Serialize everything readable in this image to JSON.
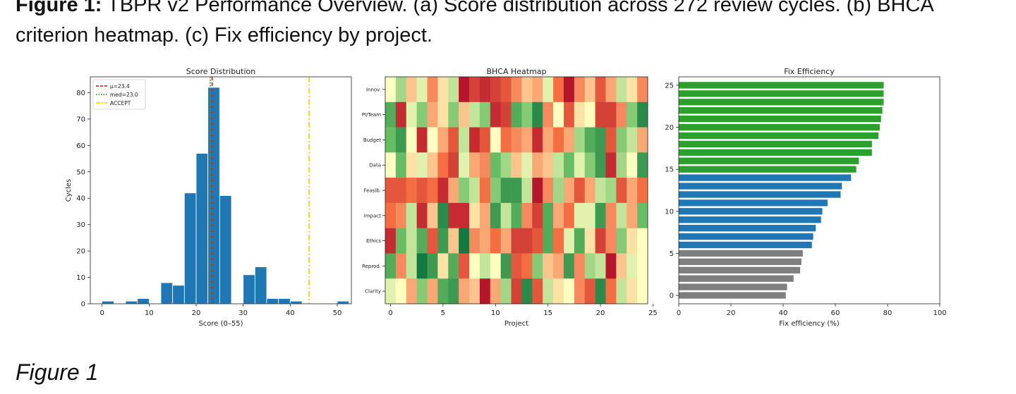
{
  "caption": {
    "label": "Figure 1:",
    "text": "TBPR v2 Performance Overview. (a) Score distribution across 272 review cycles. (b) BHCA criterion heatmap. (c) Fix efficiency by project."
  },
  "figure_label": "Figure 1",
  "chart_data": [
    {
      "type": "bar",
      "title": "Score Distribution",
      "xlabel": "Score (0–55)",
      "ylabel": "Cycles",
      "xlim": [
        -2.5,
        53
      ],
      "ylim": [
        0,
        86
      ],
      "xticks": [
        0,
        10,
        20,
        30,
        40,
        50
      ],
      "yticks": [
        0,
        10,
        20,
        30,
        40,
        50,
        60,
        70,
        80
      ],
      "bin_width": 2.5,
      "bins": [
        {
          "x0": 0,
          "count": 1
        },
        {
          "x0": 5,
          "count": 1
        },
        {
          "x0": 7.5,
          "count": 2
        },
        {
          "x0": 12.5,
          "count": 8
        },
        {
          "x0": 15,
          "count": 7
        },
        {
          "x0": 17.5,
          "count": 42
        },
        {
          "x0": 20,
          "count": 57
        },
        {
          "x0": 22.5,
          "count": 82
        },
        {
          "x0": 25,
          "count": 41
        },
        {
          "x0": 27.5,
          "count": 0
        },
        {
          "x0": 30,
          "count": 11
        },
        {
          "x0": 32.5,
          "count": 14
        },
        {
          "x0": 35,
          "count": 2
        },
        {
          "x0": 37.5,
          "count": 2
        },
        {
          "x0": 40,
          "count": 1
        },
        {
          "x0": 50,
          "count": 1
        }
      ],
      "color": "#1f77b4",
      "reference_lines": [
        {
          "name": "μ=23.4",
          "x": 23.4,
          "color": "#d62728",
          "style": "dashed"
        },
        {
          "name": "med=23.0",
          "x": 23.0,
          "color": "#2ca02c",
          "style": "dotted"
        },
        {
          "name": "ACCEPT",
          "x": 44,
          "color": "#ffd700",
          "style": "dashdot"
        }
      ],
      "legend": "top-left"
    },
    {
      "type": "heatmap",
      "title": "BHCA Heatmap",
      "xlabel": "Project",
      "ylabel": "",
      "xticks": [
        0,
        5,
        10,
        15,
        20,
        25
      ],
      "rows": [
        "Innov.",
        "PI/Team",
        "Budget",
        "Data",
        "Feasib.",
        "Impact",
        "Ethics",
        "Reprod.",
        "Clarity"
      ],
      "colormap": "RdYlGn",
      "range": [
        0,
        1
      ],
      "values": [
        [
          0.5,
          0.65,
          0.4,
          0.55,
          0.3,
          0.45,
          0.6,
          0.05,
          0.15,
          0.1,
          0.15,
          0.2,
          0.3,
          0.4,
          0.35,
          0.55,
          0.25,
          0.05,
          0.3,
          0.4,
          0.2,
          0.35,
          0.6,
          0.45,
          0.3
        ],
        [
          0.8,
          0.1,
          0.55,
          0.7,
          0.35,
          0.45,
          0.7,
          0.4,
          0.6,
          0.7,
          0.1,
          0.15,
          0.8,
          0.7,
          0.9,
          0.3,
          0.5,
          0.2,
          0.45,
          0.5,
          0.15,
          0.15,
          0.3,
          0.7,
          0.9
        ],
        [
          0.75,
          0.85,
          0.5,
          0.1,
          0.5,
          0.35,
          0.2,
          0.6,
          0.1,
          0.2,
          0.5,
          0.25,
          0.3,
          0.35,
          0.1,
          0.35,
          0.25,
          0.35,
          0.65,
          0.8,
          0.85,
          0.2,
          0.7,
          0.6,
          0.35
        ],
        [
          0.5,
          0.75,
          0.45,
          0.55,
          0.4,
          0.25,
          0.15,
          0.55,
          0.35,
          0.3,
          0.75,
          0.65,
          0.4,
          0.55,
          0.35,
          0.4,
          0.6,
          0.75,
          0.55,
          0.7,
          0.85,
          0.1,
          0.65,
          0.5,
          0.85
        ],
        [
          0.2,
          0.2,
          0.25,
          0.2,
          0.25,
          0.1,
          0.35,
          0.7,
          0.6,
          0.25,
          0.7,
          0.85,
          0.85,
          0.6,
          0.05,
          0.3,
          0.65,
          0.35,
          0.2,
          0.35,
          0.6,
          0.65,
          0.2,
          0.35,
          0.25
        ],
        [
          0.25,
          0.3,
          0.6,
          0.1,
          0.4,
          0.9,
          0.1,
          0.1,
          0.45,
          0.35,
          0.85,
          0.6,
          0.8,
          0.3,
          0.15,
          0.8,
          0.35,
          0.25,
          0.55,
          0.55,
          0.85,
          0.3,
          0.6,
          0.35,
          0.75
        ],
        [
          0.1,
          0.75,
          0.6,
          0.8,
          0.2,
          0.85,
          0.4,
          0.95,
          0.3,
          0.35,
          0.25,
          0.35,
          0.15,
          0.15,
          0.2,
          0.8,
          0.25,
          0.55,
          0.8,
          0.45,
          0.15,
          0.3,
          0.7,
          0.45,
          0.5
        ],
        [
          0.8,
          0.3,
          0.6,
          0.95,
          0.85,
          0.45,
          0.8,
          0.2,
          0.5,
          0.6,
          0.5,
          0.85,
          0.2,
          0.25,
          0.7,
          0.4,
          0.35,
          0.85,
          0.3,
          0.65,
          0.6,
          0.05,
          0.4,
          0.55,
          0.5
        ],
        [
          0.55,
          0.5,
          0.35,
          0.7,
          0.35,
          0.8,
          0.85,
          0.35,
          0.4,
          0.05,
          0.35,
          0.65,
          0.15,
          0.9,
          0.2,
          0.6,
          0.45,
          0.5,
          0.3,
          0.2,
          0.9,
          0.25,
          0.6,
          0.45,
          0.5
        ]
      ]
    },
    {
      "type": "bar",
      "orientation": "horizontal",
      "title": "Fix Efficiency",
      "xlabel": "Fix efficiency (%)",
      "ylabel": "",
      "xlim": [
        0,
        100
      ],
      "ylim": [
        -1,
        26
      ],
      "xticks": [
        0,
        20,
        40,
        60,
        80,
        100
      ],
      "yticks": [
        0,
        5,
        10,
        15,
        20,
        25
      ],
      "groups": [
        {
          "color": "#7f7f7f",
          "from": 0,
          "to": 5
        },
        {
          "color": "#1f77b4",
          "from": 6,
          "to": 14
        },
        {
          "color": "#2ca02c",
          "from": 15,
          "to": 25
        }
      ],
      "values": [
        41,
        41.5,
        44,
        46.5,
        47,
        47.5,
        51,
        51.5,
        52.5,
        54.5,
        55,
        57,
        62,
        62.5,
        66,
        68,
        69,
        74,
        74,
        76.5,
        77,
        77.5,
        78,
        78.5,
        78.5,
        78.5
      ]
    }
  ]
}
